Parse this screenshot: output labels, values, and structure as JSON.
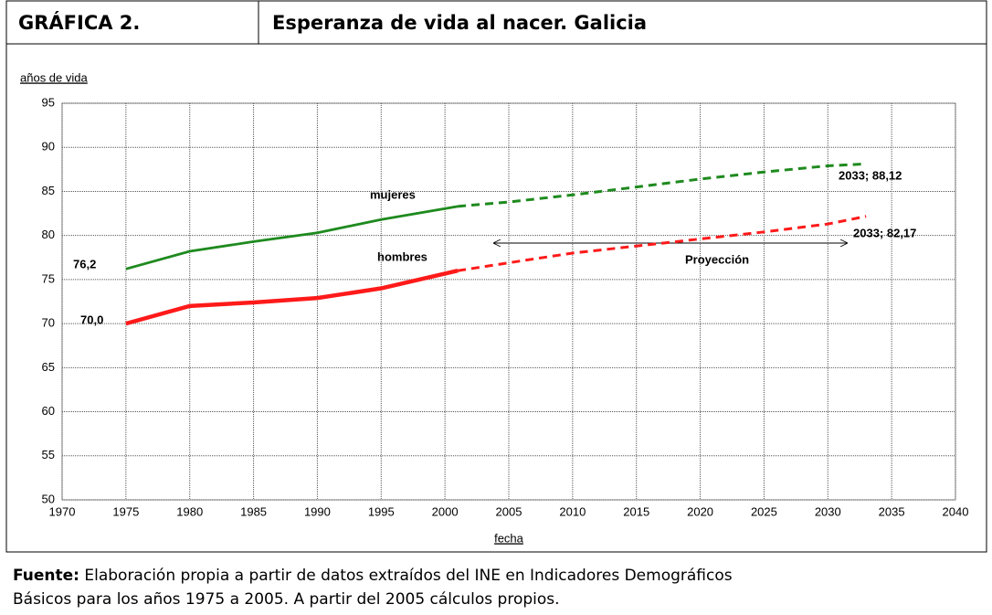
{
  "header": {
    "label": "GRÁFICA 2.",
    "title": "Esperanza de vida al nacer. Galicia"
  },
  "chart_data": {
    "type": "line",
    "y_label": "años de vida",
    "x_label": "fecha",
    "x": [
      1975,
      1980,
      1985,
      1990,
      1995,
      2001,
      2005,
      2010,
      2015,
      2020,
      2025,
      2030,
      2033
    ],
    "series": [
      {
        "name": "mujeres",
        "color": "#1e8a1e",
        "style": "solid",
        "values": [
          76.2,
          78.2,
          79.3,
          80.3,
          81.8,
          83.3,
          null,
          null,
          null,
          null,
          null,
          null,
          null
        ]
      },
      {
        "color": "#1e8a1e",
        "style": "dashed",
        "values": [
          null,
          null,
          null,
          null,
          null,
          83.3,
          83.8,
          84.6,
          85.5,
          86.4,
          87.2,
          87.9,
          88.12
        ]
      },
      {
        "name": "hombres",
        "color": "#ff1a1a",
        "style": "solid",
        "values": [
          70.0,
          72.0,
          72.4,
          72.9,
          74.0,
          76.0,
          null,
          null,
          null,
          null,
          null,
          null,
          null
        ]
      },
      {
        "color": "#ff1a1a",
        "style": "dashed",
        "values": [
          null,
          null,
          null,
          null,
          null,
          76.0,
          76.9,
          78.0,
          78.8,
          79.6,
          80.4,
          81.3,
          82.17
        ]
      }
    ],
    "annotations": [
      "76,2",
      "70,0",
      "2033; 88,12",
      "2033; 82,17",
      "Proyección"
    ],
    "xlim": [
      1970,
      2040
    ],
    "xticks": [
      1970,
      1975,
      1980,
      1985,
      1990,
      1995,
      2000,
      2005,
      2010,
      2015,
      2020,
      2025,
      2030,
      2035,
      2040
    ],
    "ylim": [
      50,
      95
    ],
    "yticks": [
      50,
      55,
      60,
      65,
      70,
      75,
      80,
      85,
      90,
      95
    ],
    "grid": true
  },
  "footer": {
    "label": "Fuente:",
    "lines": [
      " Elaboración propia a partir de datos extraídos del INE en Indicadores Demográficos",
      "Básicos para los años 1975 a 2005. A partir del 2005 cálculos propios."
    ]
  }
}
